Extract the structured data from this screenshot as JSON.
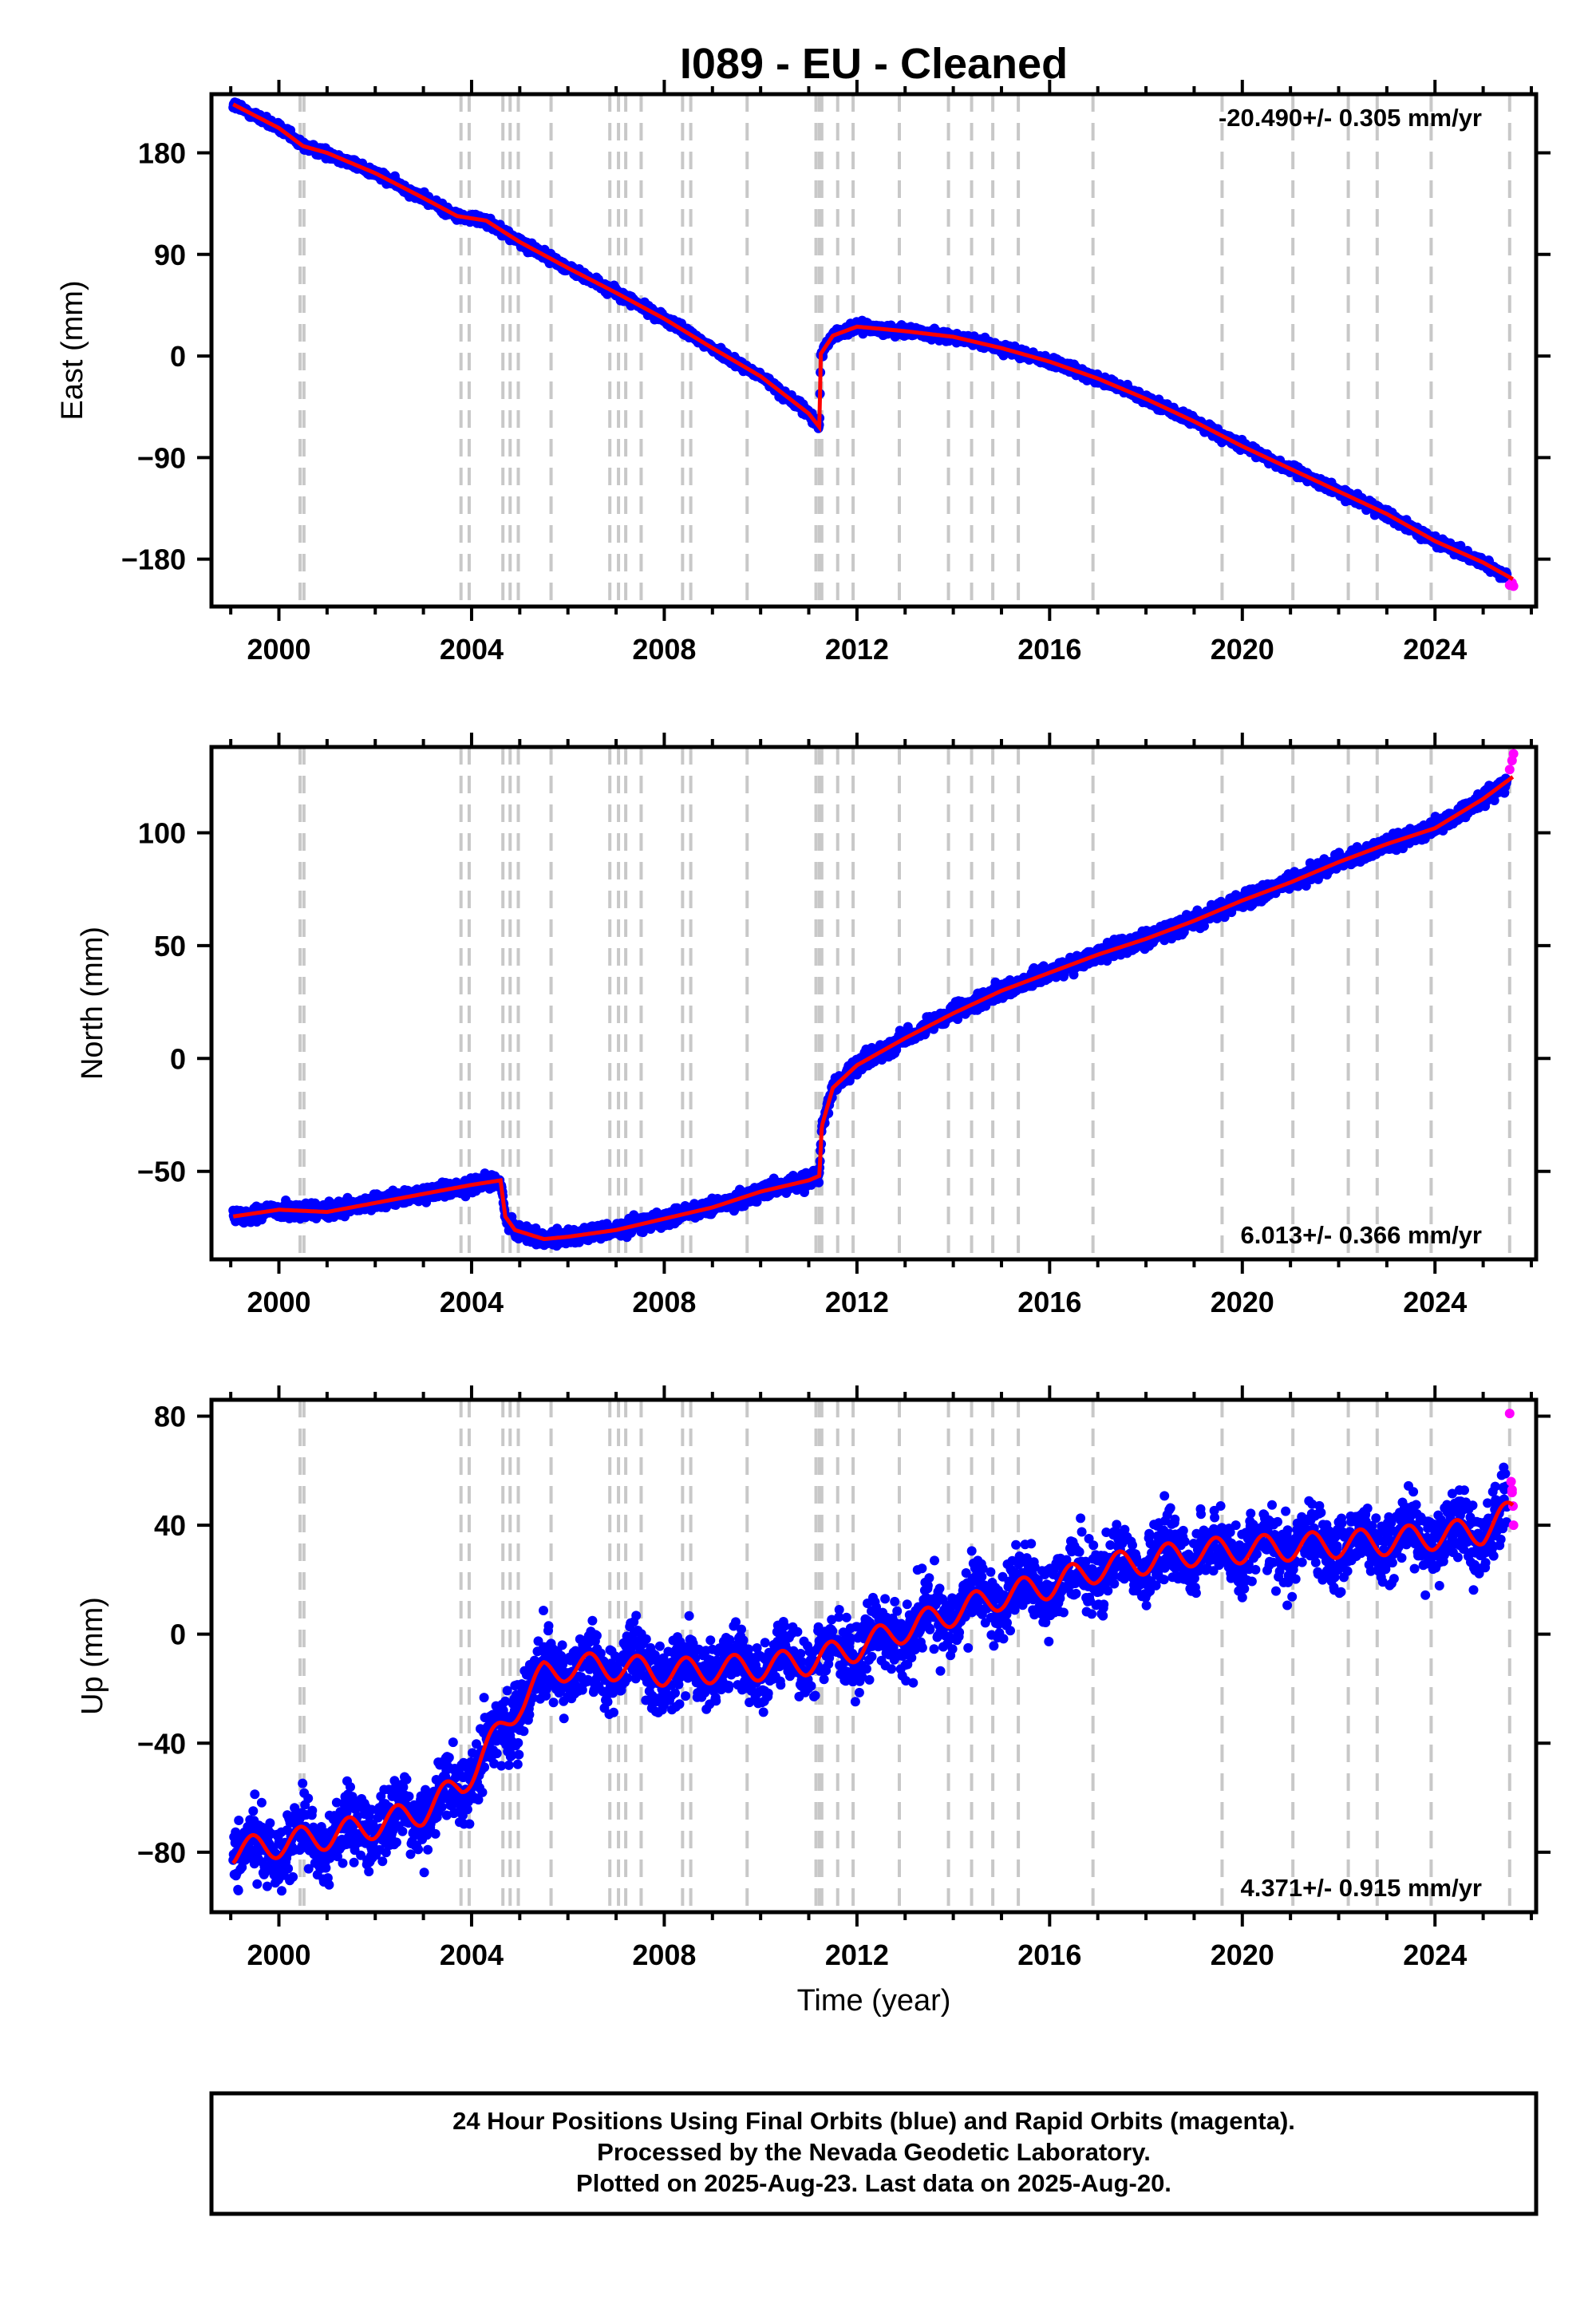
{
  "title": "I089  - EU - Cleaned",
  "xlabel": "Time (year)",
  "x_ticks": [
    2000,
    2004,
    2008,
    2012,
    2016,
    2020,
    2024
  ],
  "xlim": [
    1998.6,
    2026.1
  ],
  "colors": {
    "final_orbits": "#0000ff",
    "rapid_orbits": "#ff00ff",
    "model": "#ff0000",
    "event_lines": "#c8c8c8"
  },
  "event_lines": [
    2000.44,
    2000.52,
    2003.78,
    2003.95,
    2004.65,
    2004.8,
    2004.97,
    2005.65,
    2006.87,
    2007.05,
    2007.2,
    2007.52,
    2008.38,
    2008.55,
    2009.72,
    2011.15,
    2011.22,
    2011.27,
    2011.6,
    2011.92,
    2012.88,
    2013.9,
    2014.38,
    2014.82,
    2015.35,
    2016.9,
    2019.58,
    2021.05,
    2022.2,
    2022.8,
    2023.92,
    2025.55
  ],
  "chart_data": [
    {
      "type": "scatter",
      "ylabel": "East (mm)",
      "ylim": [
        -222,
        232
      ],
      "y_ticks": [
        180,
        90,
        0,
        -90,
        -180
      ],
      "rate_label": "-20.490+/- 0.305 mm/yr",
      "rate_position": "top-right",
      "series": [
        {
          "name": "final orbits",
          "scatter": 3
        },
        {
          "name": "rapid orbits",
          "x": [
            2025.55,
            2025.6,
            2025.63
          ],
          "y": [
            -203,
            -201,
            -204
          ]
        },
        {
          "name": "model",
          "x": [
            1999.05,
            2000.0,
            2000.5,
            2001.0,
            2002.0,
            2003.0,
            2003.7,
            2004.3,
            2005.0,
            2006.0,
            2007.0,
            2008.0,
            2009.0,
            2010.0,
            2011.0,
            2011.22,
            2011.25,
            2011.5,
            2012.0,
            2013.0,
            2014.0,
            2015.0,
            2016.0,
            2017.0,
            2018.0,
            2019.0,
            2020.0,
            2021.0,
            2022.0,
            2023.0,
            2024.0,
            2025.0,
            2025.63
          ],
          "y": [
            223,
            202,
            186,
            180,
            162,
            140,
            124,
            120,
            101,
            78,
            56,
            33,
            7,
            -18,
            -51,
            -63,
            2,
            18,
            26,
            22,
            17,
            7,
            -5,
            -20,
            -38,
            -58,
            -80,
            -100,
            -120,
            -140,
            -164,
            -183,
            -198
          ]
        }
      ]
    },
    {
      "type": "scatter",
      "ylabel": "North (mm)",
      "ylim": [
        -89,
        138
      ],
      "y_ticks": [
        100,
        50,
        0,
        -50
      ],
      "rate_label": "6.013+/- 0.366 mm/yr",
      "rate_position": "bottom-right",
      "series": [
        {
          "name": "final orbits",
          "scatter": 2.5
        },
        {
          "name": "rapid orbits",
          "x": [
            2025.55,
            2025.6,
            2025.63
          ],
          "y": [
            128,
            132,
            135
          ]
        },
        {
          "name": "model",
          "x": [
            1999.05,
            2000.0,
            2001.0,
            2002.0,
            2003.0,
            2004.0,
            2004.6,
            2004.7,
            2004.9,
            2005.5,
            2006.0,
            2007.0,
            2008.0,
            2009.0,
            2010.0,
            2011.0,
            2011.22,
            2011.27,
            2011.5,
            2012.0,
            2013.0,
            2014.0,
            2015.0,
            2016.0,
            2017.0,
            2018.0,
            2019.0,
            2020.0,
            2021.0,
            2022.0,
            2023.0,
            2024.0,
            2025.0,
            2025.63
          ],
          "y": [
            -70,
            -67,
            -68,
            -64,
            -60,
            -56,
            -54,
            -70,
            -76,
            -80,
            -79,
            -76,
            -71,
            -66,
            -59,
            -54,
            -52,
            -30,
            -13,
            -3,
            9,
            20,
            30,
            38,
            46,
            53,
            61,
            70,
            78,
            87,
            95,
            102,
            115,
            125
          ]
        }
      ]
    },
    {
      "type": "scatter",
      "ylabel": "Up (mm)",
      "ylim": [
        -102,
        86
      ],
      "y_ticks": [
        80,
        40,
        0,
        -40,
        -80
      ],
      "rate_label": "4.371+/- 0.915 mm/yr",
      "rate_position": "bottom-right",
      "series": [
        {
          "name": "final orbits",
          "scatter": 9
        },
        {
          "name": "rapid orbits",
          "x": [
            2025.55,
            2025.58,
            2025.6,
            2025.62,
            2025.63,
            2025.6
          ],
          "y": [
            81,
            56,
            52,
            47,
            40,
            53
          ]
        },
        {
          "name": "model",
          "x": [
            1999.05,
            2000.0,
            2001.0,
            2002.0,
            2003.0,
            2003.8,
            2004.5,
            2005.0,
            2005.5,
            2006.0,
            2007.0,
            2008.0,
            2009.0,
            2010.0,
            2011.0,
            2012.0,
            2013.0,
            2014.0,
            2015.0,
            2016.0,
            2017.0,
            2018.0,
            2019.0,
            2020.0,
            2021.0,
            2022.0,
            2023.0,
            2024.0,
            2025.0,
            2025.63
          ],
          "y": [
            -80,
            -77,
            -74,
            -70,
            -65,
            -55,
            -38,
            -25,
            -15,
            -12,
            -12,
            -14,
            -13,
            -12,
            -10,
            -5,
            2,
            8,
            14,
            18,
            24,
            27,
            30,
            31,
            32,
            33,
            34,
            36,
            38,
            45
          ],
          "annual_amplitude_mm": 5
        }
      ]
    }
  ],
  "footer_lines": [
    "24 Hour Positions Using Final Orbits (blue) and Rapid Orbits (magenta).",
    "Processed by the Nevada Geodetic Laboratory.",
    "Plotted on 2025-Aug-23. Last data on 2025-Aug-20."
  ]
}
